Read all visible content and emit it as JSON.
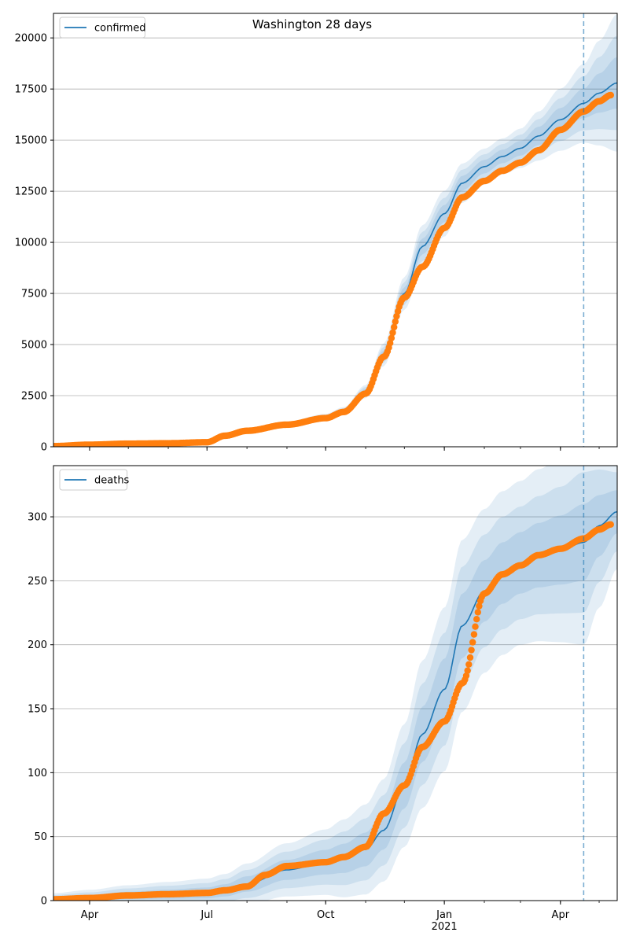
{
  "figure": {
    "title": "Washington 28 days"
  },
  "colors": {
    "model": "#1f77b4",
    "observed": "#ff7f0e",
    "band": "#1f77b4",
    "grid": "#b0b0b0"
  },
  "x_axis": {
    "ticks": [
      {
        "date": "2020-04-01",
        "label": "Apr"
      },
      {
        "date": "2020-07-01",
        "label": "Jul"
      },
      {
        "date": "2020-10-01",
        "label": "Oct"
      },
      {
        "date": "2021-01-01",
        "label": "Jan"
      },
      {
        "date": "2021-04-01",
        "label": "Apr"
      }
    ],
    "year_label": "2021",
    "range": [
      "2020-03-04",
      "2021-05-15"
    ],
    "forecast_start": "2021-04-19"
  },
  "chart_data": [
    {
      "type": "line",
      "name": "confirmed-panel",
      "legend": [
        "confirmed"
      ],
      "legend_position": "top-left",
      "grid": "horizontal",
      "ylim": [
        0,
        21200
      ],
      "yticks": [
        0,
        2500,
        5000,
        7500,
        10000,
        12500,
        15000,
        17500,
        20000
      ],
      "model": {
        "name": "confirmed",
        "x": [
          "2020-03-04",
          "2020-04-01",
          "2020-05-01",
          "2020-06-01",
          "2020-07-01",
          "2020-07-15",
          "2020-08-01",
          "2020-09-01",
          "2020-10-01",
          "2020-10-15",
          "2020-11-01",
          "2020-11-15",
          "2020-12-01",
          "2020-12-15",
          "2021-01-01",
          "2021-01-15",
          "2021-02-01",
          "2021-02-15",
          "2021-03-01",
          "2021-03-15",
          "2021-04-01",
          "2021-04-19",
          "2021-05-01",
          "2021-05-15"
        ],
        "y": [
          30,
          100,
          150,
          180,
          230,
          560,
          800,
          1100,
          1450,
          1750,
          2700,
          4500,
          7500,
          9800,
          11400,
          12900,
          13700,
          14200,
          14600,
          15200,
          16000,
          16800,
          17300,
          17800
        ],
        "band_width": [
          5,
          15,
          20,
          25,
          30,
          50,
          60,
          80,
          100,
          120,
          200,
          350,
          500,
          650,
          700,
          600,
          550,
          550,
          600,
          750,
          950,
          1200,
          1600,
          2100
        ]
      },
      "observed": {
        "name": "observed confirmed",
        "x": [
          "2020-03-04",
          "2020-04-01",
          "2020-05-01",
          "2020-06-01",
          "2020-07-01",
          "2020-07-15",
          "2020-08-01",
          "2020-09-01",
          "2020-10-01",
          "2020-10-15",
          "2020-11-01",
          "2020-11-15",
          "2020-12-01",
          "2020-12-15",
          "2021-01-01",
          "2021-01-15",
          "2021-02-01",
          "2021-02-15",
          "2021-03-01",
          "2021-03-15",
          "2021-04-01",
          "2021-04-19",
          "2021-05-01",
          "2021-05-10"
        ],
        "y": [
          30,
          100,
          150,
          170,
          220,
          540,
          780,
          1080,
          1400,
          1700,
          2600,
          4400,
          7300,
          8800,
          10700,
          12200,
          13000,
          13500,
          13900,
          14500,
          15500,
          16400,
          16900,
          17200
        ]
      }
    },
    {
      "type": "line",
      "name": "deaths-panel",
      "legend": [
        "deaths"
      ],
      "legend_position": "top-left",
      "grid": "horizontal",
      "ylim": [
        0,
        340
      ],
      "yticks": [
        0,
        50,
        100,
        150,
        200,
        250,
        300
      ],
      "model": {
        "name": "deaths",
        "x": [
          "2020-03-04",
          "2020-04-01",
          "2020-05-01",
          "2020-06-01",
          "2020-07-01",
          "2020-07-15",
          "2020-08-01",
          "2020-09-01",
          "2020-10-01",
          "2020-10-15",
          "2020-11-01",
          "2020-11-15",
          "2020-12-01",
          "2020-12-15",
          "2021-01-01",
          "2021-01-15",
          "2021-02-01",
          "2021-02-15",
          "2021-03-01",
          "2021-03-15",
          "2021-04-01",
          "2021-04-19",
          "2021-05-01",
          "2021-05-15"
        ],
        "y": [
          1,
          2,
          4,
          5,
          6,
          8,
          13,
          24,
          30,
          33,
          40,
          55,
          90,
          130,
          165,
          215,
          242,
          256,
          264,
          270,
          274,
          280,
          293,
          304
        ],
        "band_width": [
          3,
          4,
          5,
          6,
          7,
          8,
          10,
          13,
          16,
          19,
          22,
          25,
          30,
          36,
          40,
          42,
          40,
          40,
          40,
          42,
          45,
          50,
          40,
          28
        ]
      },
      "observed": {
        "name": "observed deaths",
        "x": [
          "2020-03-04",
          "2020-04-01",
          "2020-05-01",
          "2020-06-01",
          "2020-07-01",
          "2020-07-15",
          "2020-08-01",
          "2020-08-15",
          "2020-09-01",
          "2020-10-01",
          "2020-10-15",
          "2020-11-01",
          "2020-11-15",
          "2020-12-01",
          "2020-12-15",
          "2021-01-01",
          "2021-01-15",
          "2021-02-01",
          "2021-02-15",
          "2021-03-01",
          "2021-03-15",
          "2021-04-01",
          "2021-04-19",
          "2021-05-01",
          "2021-05-10"
        ],
        "y": [
          1,
          2,
          4,
          5,
          6,
          8,
          11,
          20,
          27,
          30,
          34,
          42,
          68,
          90,
          120,
          140,
          170,
          240,
          255,
          262,
          270,
          275,
          283,
          290,
          294
        ]
      }
    }
  ]
}
